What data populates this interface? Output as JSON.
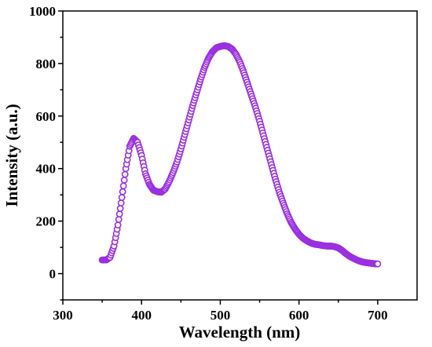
{
  "chart_data": {
    "type": "scatter",
    "title": "",
    "xlabel": "Wavelength (nm)",
    "ylabel": "Intensity (a.u.)",
    "xlim": [
      300,
      750
    ],
    "ylim": [
      -100,
      1000
    ],
    "xticks": [
      300,
      400,
      500,
      600,
      700
    ],
    "xtick_labels": [
      "300",
      "400",
      "500",
      "600",
      "700"
    ],
    "yticks": [
      0,
      200,
      400,
      600,
      800,
      1000
    ],
    "ytick_labels": [
      "0",
      "200",
      "400",
      "600",
      "800",
      "1000"
    ],
    "grid": false,
    "legend": "none",
    "marker_color": "#9B30E0",
    "marker": "open-circle",
    "series": [
      {
        "x": [
          350,
          355,
          360,
          365,
          370,
          375,
          380,
          385,
          390,
          395,
          400,
          405,
          410,
          415,
          420,
          425,
          430,
          435,
          440,
          445,
          450,
          455,
          460,
          465,
          470,
          475,
          480,
          485,
          490,
          495,
          500,
          505,
          510,
          515,
          520,
          525,
          530,
          535,
          540,
          545,
          550,
          555,
          560,
          565,
          570,
          575,
          580,
          585,
          590,
          595,
          600,
          605,
          610,
          615,
          620,
          625,
          630,
          635,
          640,
          645,
          650,
          655,
          660,
          665,
          670,
          675,
          680,
          685,
          690,
          695,
          700
        ],
        "y": [
          52,
          52,
          62,
          105,
          185,
          290,
          400,
          485,
          515,
          500,
          450,
          380,
          340,
          318,
          312,
          310,
          322,
          350,
          385,
          425,
          475,
          530,
          585,
          640,
          690,
          740,
          785,
          820,
          845,
          860,
          865,
          868,
          865,
          855,
          835,
          805,
          765,
          720,
          675,
          630,
          580,
          525,
          470,
          415,
          360,
          310,
          268,
          228,
          195,
          170,
          150,
          135,
          125,
          117,
          112,
          110,
          107,
          105,
          105,
          103,
          98,
          88,
          75,
          65,
          57,
          50,
          45,
          42,
          40,
          38,
          37
        ]
      }
    ]
  }
}
